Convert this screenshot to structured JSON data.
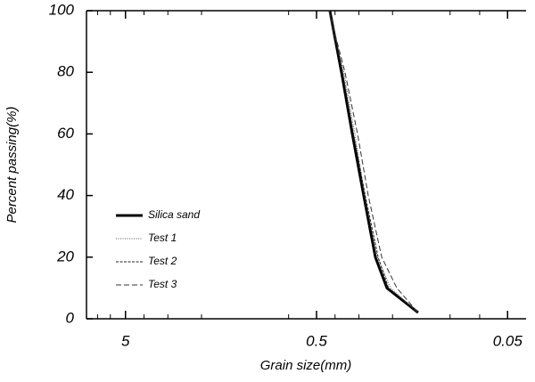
{
  "chart_data": {
    "type": "line",
    "xlabel": "Grain size(mm)",
    "ylabel": "Percent passing(%)",
    "xscale": "log",
    "xlim": [
      8,
      0.04
    ],
    "xticks": [
      5,
      0.5,
      0.05
    ],
    "xminorticks": [
      7,
      6,
      4,
      3,
      2,
      0.7,
      0.4,
      0.3,
      0.2,
      0.1,
      0.07
    ],
    "ylim": [
      0,
      100
    ],
    "yticks": [
      0,
      20,
      40,
      60,
      80,
      100
    ],
    "legend": "lower left",
    "series": [
      {
        "name": "Silica sand",
        "color": "#000000",
        "style": "solid",
        "width": 3,
        "x": [
          0.426,
          0.37,
          0.325,
          0.283,
          0.246,
          0.214,
          0.147
        ],
        "values": [
          100,
          80,
          60,
          40,
          20,
          10,
          2
        ]
      },
      {
        "name": "Test 1",
        "color": "#555555",
        "style": "dotted",
        "width": 1,
        "x": [
          0.43,
          0.36,
          0.315,
          0.28,
          0.24,
          0.205,
          0.147
        ],
        "values": [
          100,
          80,
          60,
          40,
          20,
          10,
          2
        ]
      },
      {
        "name": "Test 2",
        "color": "#222222",
        "style": "densely-dashed",
        "width": 1,
        "x": [
          0.43,
          0.365,
          0.32,
          0.278,
          0.238,
          0.21,
          0.147
        ],
        "values": [
          100,
          80,
          60,
          40,
          20,
          10,
          2
        ]
      },
      {
        "name": "Test 3",
        "color": "#333333",
        "style": "dashed",
        "width": 1,
        "x": [
          0.43,
          0.355,
          0.305,
          0.268,
          0.228,
          0.19,
          0.147
        ],
        "values": [
          100,
          80,
          60,
          40,
          20,
          10,
          2
        ]
      }
    ]
  }
}
